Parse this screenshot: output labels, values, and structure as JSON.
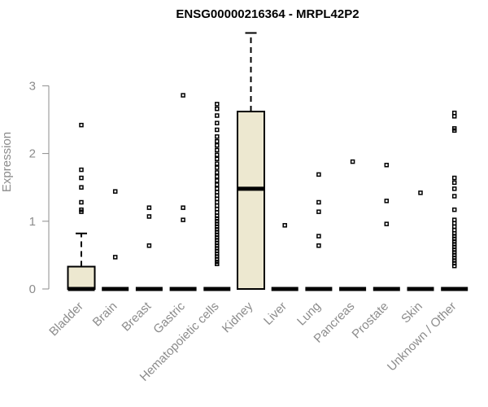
{
  "chart_data": {
    "type": "boxplot",
    "title": "ENSG00000216364 - MRPL42P2",
    "xlabel": "",
    "ylabel": "Expression",
    "ylim": [
      0,
      3.78
    ],
    "yticks": [
      0,
      1,
      2,
      3
    ],
    "grid": false,
    "box_color": "#ede8d0",
    "categories": [
      "Bladder",
      "Brain",
      "Breast",
      "Gastric",
      "Hematopoietic cells",
      "Kidney",
      "Liver",
      "Lung",
      "Pancreas",
      "Prostate",
      "Skin",
      "Unknown / Other"
    ],
    "boxes": [
      {
        "name": "Bladder",
        "min": 0,
        "q1": 0,
        "median": 0,
        "q3": 0.33,
        "max": 0.82,
        "outliers": [
          2.42,
          1.76,
          1.64,
          1.5,
          1.28,
          1.17,
          1.14
        ]
      },
      {
        "name": "Brain",
        "min": 0,
        "q1": 0,
        "median": 0,
        "q3": 0,
        "max": 0,
        "outliers": [
          1.44,
          0.47
        ]
      },
      {
        "name": "Breast",
        "min": 0,
        "q1": 0,
        "median": 0,
        "q3": 0,
        "max": 0,
        "outliers": [
          1.2,
          1.07,
          0.64
        ]
      },
      {
        "name": "Gastric",
        "min": 0,
        "q1": 0,
        "median": 0,
        "q3": 0,
        "max": 0,
        "outliers": [
          2.86,
          1.2,
          1.02
        ]
      },
      {
        "name": "Hematopoietic cells",
        "min": 0,
        "q1": 0,
        "median": 0,
        "q3": 0,
        "max": 0,
        "outliers": [
          2.73,
          2.66,
          2.56,
          2.45,
          2.35,
          2.25,
          2.18,
          2.12,
          2.05,
          1.98,
          1.92,
          1.85,
          1.79,
          1.72,
          1.66,
          1.6,
          1.54,
          1.48,
          1.43,
          1.38,
          1.33,
          1.28,
          1.23,
          1.18,
          1.13,
          1.08,
          1.04,
          1.0,
          0.96,
          0.92,
          0.88,
          0.84,
          0.8,
          0.76,
          0.72,
          0.68,
          0.64,
          0.6,
          0.56,
          0.52,
          0.48,
          0.44,
          0.4,
          0.37
        ]
      },
      {
        "name": "Kidney",
        "min": 0,
        "q1": 0,
        "median": 1.48,
        "q3": 2.62,
        "max": 3.78,
        "outliers": []
      },
      {
        "name": "Liver",
        "min": 0,
        "q1": 0,
        "median": 0,
        "q3": 0,
        "max": 0,
        "outliers": [
          0.94
        ]
      },
      {
        "name": "Lung",
        "min": 0,
        "q1": 0,
        "median": 0,
        "q3": 0,
        "max": 0,
        "outliers": [
          1.69,
          1.28,
          1.14,
          0.78,
          0.64
        ]
      },
      {
        "name": "Pancreas",
        "min": 0,
        "q1": 0,
        "median": 0,
        "q3": 0,
        "max": 0,
        "outliers": [
          1.88
        ]
      },
      {
        "name": "Prostate",
        "min": 0,
        "q1": 0,
        "median": 0,
        "q3": 0,
        "max": 0,
        "outliers": [
          1.83,
          1.3,
          0.96
        ]
      },
      {
        "name": "Skin",
        "min": 0,
        "q1": 0,
        "median": 0,
        "q3": 0,
        "max": 0,
        "outliers": [
          1.42
        ]
      },
      {
        "name": "Unknown / Other",
        "min": 0,
        "q1": 0,
        "median": 0,
        "q3": 0,
        "max": 0,
        "outliers": [
          2.6,
          2.55,
          2.37,
          2.34,
          1.64,
          1.57,
          1.48,
          1.37,
          1.17,
          1.02,
          0.97,
          0.92,
          0.87,
          0.82,
          0.78,
          0.74,
          0.7,
          0.66,
          0.62,
          0.58,
          0.54,
          0.5,
          0.46,
          0.42,
          0.38,
          0.34
        ]
      }
    ]
  }
}
